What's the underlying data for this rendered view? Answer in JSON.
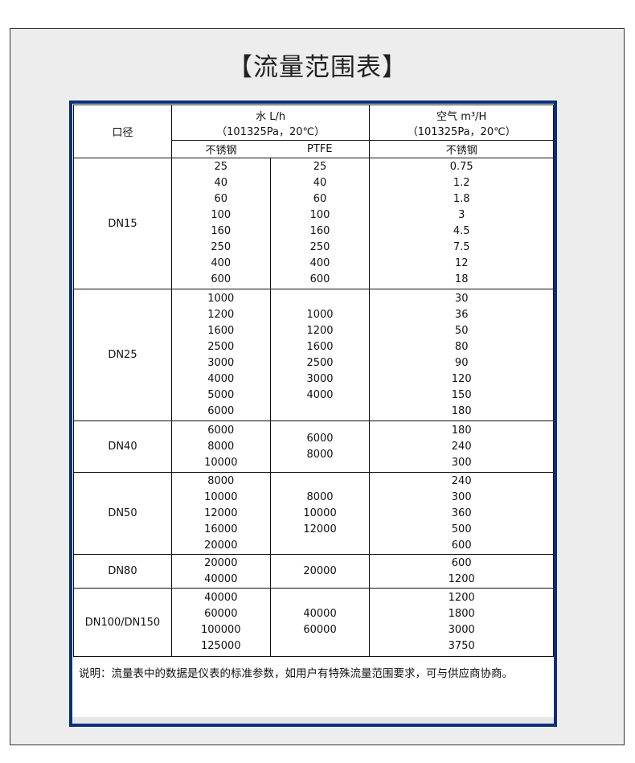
{
  "title": "【流量范围表】",
  "header": {
    "caliber": "口径",
    "water": "水 L/h",
    "water_cond": "（101325Pa，20℃）",
    "air": "空气 m³/H",
    "air_cond": "（101325Pa，20℃）",
    "water_ss": "不锈钢",
    "water_ptfe": "PTFE",
    "air_ss": "不锈钢"
  },
  "rows": [
    {
      "dn": "DN15",
      "ss": [
        "25",
        "40",
        "60",
        "100",
        "160",
        "250",
        "400",
        "600"
      ],
      "ptfe": [
        "25",
        "40",
        "60",
        "100",
        "160",
        "250",
        "400",
        "600"
      ],
      "air": [
        "0.75",
        "1.2",
        "1.8",
        "3",
        "4.5",
        "7.5",
        "12",
        "18"
      ]
    },
    {
      "dn": "DN25",
      "ss": [
        "1000",
        "1200",
        "1600",
        "2500",
        "3000",
        "4000",
        "5000",
        "6000"
      ],
      "ptfe": [
        "1000",
        "1200",
        "1600",
        "2500",
        "3000",
        "4000"
      ],
      "air": [
        "30",
        "36",
        "50",
        "80",
        "90",
        "120",
        "150",
        "180"
      ]
    },
    {
      "dn": "DN40",
      "ss": [
        "6000",
        "8000",
        "10000"
      ],
      "ptfe": [
        "6000",
        "8000"
      ],
      "air": [
        "180",
        "240",
        "300"
      ]
    },
    {
      "dn": "DN50",
      "ss": [
        "8000",
        "10000",
        "12000",
        "16000",
        "20000"
      ],
      "ptfe": [
        "8000",
        "10000",
        "12000"
      ],
      "air": [
        "240",
        "300",
        "360",
        "500",
        "600"
      ]
    },
    {
      "dn": "DN80",
      "ss": [
        "20000",
        "40000"
      ],
      "ptfe": [
        "20000"
      ],
      "air": [
        "600",
        "1200"
      ]
    },
    {
      "dn": "DN100/DN150",
      "ss": [
        "40000",
        "60000",
        "100000",
        "125000"
      ],
      "ptfe": [
        "40000",
        "60000"
      ],
      "air": [
        "1200",
        "1800",
        "3000",
        "3750"
      ]
    }
  ],
  "note": "说明：流量表中的数据是仪表的标准参数，如用户有特殊流量范围要求，可与供应商协商。",
  "colors": {
    "frame": "#0c2f7c",
    "background": "#ededed"
  }
}
